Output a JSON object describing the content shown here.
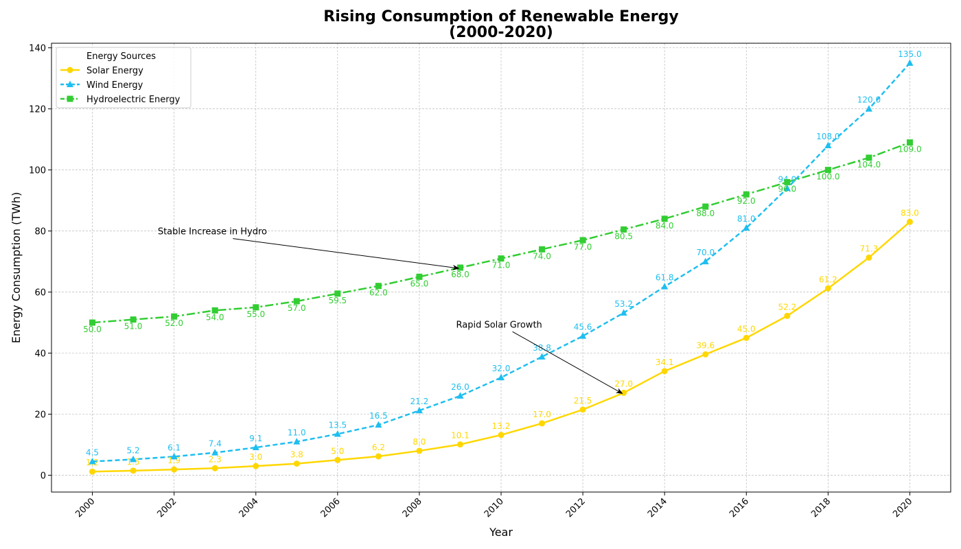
{
  "chart_data": {
    "type": "line",
    "title_line1": "Rising Consumption of Renewable Energy",
    "title_line2": "(2000-2020)",
    "xlabel": "Year",
    "ylabel": "Energy Consumption (TWh)",
    "xlim": [
      1999,
      2021
    ],
    "ylim": [
      -5.5,
      141.5
    ],
    "x_ticks": [
      "2000",
      "2002",
      "2004",
      "2006",
      "2008",
      "2010",
      "2012",
      "2014",
      "2016",
      "2018",
      "2020"
    ],
    "y_ticks": [
      "0",
      "20",
      "40",
      "60",
      "80",
      "100",
      "120",
      "140"
    ],
    "grid": true,
    "legend": {
      "title": "Energy Sources",
      "position": "top-left"
    },
    "x": [
      2000,
      2001,
      2002,
      2003,
      2004,
      2005,
      2006,
      2007,
      2008,
      2009,
      2010,
      2011,
      2012,
      2013,
      2014,
      2015,
      2016,
      2017,
      2018,
      2019,
      2020
    ],
    "series": [
      {
        "name": "Solar Energy",
        "color": "#FFD700",
        "marker": "circle",
        "dash": "solid",
        "label_position": "above",
        "values": [
          1.2,
          1.5,
          1.9,
          2.3,
          3.0,
          3.8,
          5.0,
          6.2,
          8.0,
          10.1,
          13.2,
          17.0,
          21.5,
          27.0,
          34.1,
          39.6,
          45.0,
          52.2,
          61.2,
          71.3,
          83.0
        ],
        "labels": [
          "1.2",
          "1.5",
          "1.9",
          "2.3",
          "3.0",
          "3.8",
          "5.0",
          "6.2",
          "8.0",
          "10.1",
          "13.2",
          "17.0",
          "21.5",
          "27.0",
          "34.1",
          "39.6",
          "45.0",
          "52.2",
          "61.2",
          "71.3",
          "83.0"
        ]
      },
      {
        "name": "Wind Energy",
        "color": "#1EBEF0",
        "marker": "triangle",
        "dash": "dashed",
        "label_position": "above",
        "values": [
          4.5,
          5.2,
          6.1,
          7.4,
          9.1,
          11.0,
          13.5,
          16.5,
          21.2,
          26.0,
          32.0,
          38.8,
          45.6,
          53.2,
          61.8,
          70.0,
          81.0,
          94.0,
          108.0,
          120.0,
          135.0
        ],
        "labels": [
          "4.5",
          "5.2",
          "6.1",
          "7.4",
          "9.1",
          "11.0",
          "13.5",
          "16.5",
          "21.2",
          "26.0",
          "32.0",
          "38.8",
          "45.6",
          "53.2",
          "61.8",
          "70.0",
          "81.0",
          "94.0",
          "108.0",
          "120.0",
          "135.0"
        ]
      },
      {
        "name": "Hydroelectric Energy",
        "color": "#32CD32",
        "marker": "square",
        "dash": "dashdot",
        "label_position": "below",
        "values": [
          50.0,
          51.0,
          52.0,
          54.0,
          55.0,
          57.0,
          59.5,
          62.0,
          65.0,
          68.0,
          71.0,
          74.0,
          77.0,
          80.5,
          84.0,
          88.0,
          92.0,
          96.0,
          100.0,
          104.0,
          109.0
        ],
        "labels": [
          "50.0",
          "51.0",
          "52.0",
          "54.0",
          "55.0",
          "57.0",
          "59.5",
          "62.0",
          "65.0",
          "68.0",
          "71.0",
          "74.0",
          "77.0",
          "80.5",
          "84.0",
          "88.0",
          "92.0",
          "96.0",
          "100.0",
          "104.0",
          "109.0"
        ]
      }
    ],
    "annotations": [
      {
        "text": "Stable Increase in Hydro",
        "text_x": 2001.6,
        "text_y": 80,
        "target_x": 2009,
        "target_y": 68.0
      },
      {
        "text": "Rapid Solar Growth",
        "text_x": 2008.9,
        "text_y": 49.5,
        "target_x": 2013,
        "target_y": 27.0
      }
    ]
  }
}
